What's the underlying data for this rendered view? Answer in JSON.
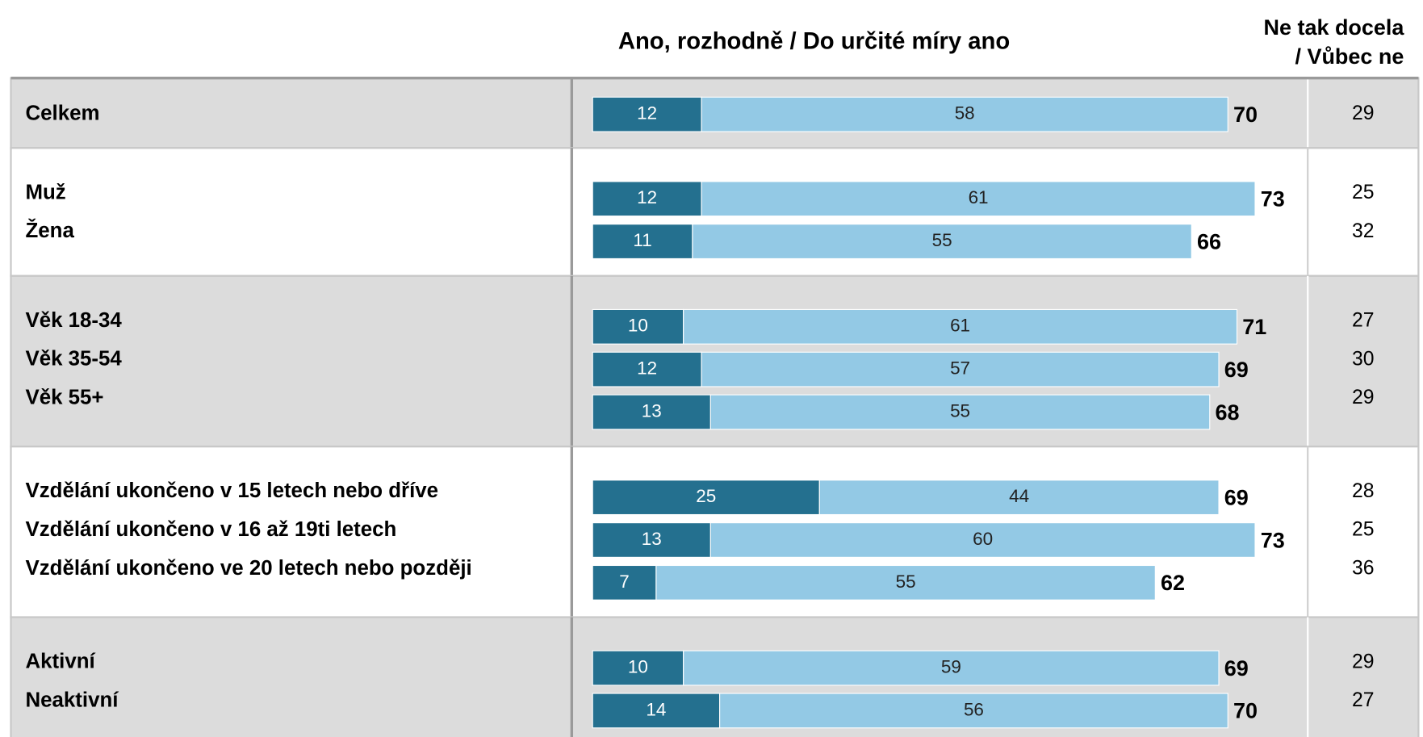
{
  "chart_data": {
    "type": "bar",
    "stacked": true,
    "orientation": "horizontal",
    "header_yes": "Ano, rozhodně / Do určité míry ano",
    "header_no": [
      "Ne tak docela",
      "/ Vůbec ne"
    ],
    "colors": [
      "#24708f",
      "#93c9e5"
    ],
    "xlim": [
      0,
      80
    ],
    "groups": [
      {
        "categories": [
          "Celkem"
        ],
        "series": [
          [
            12
          ],
          [
            58
          ]
        ],
        "totals": [
          70
        ],
        "rest": [
          29
        ]
      },
      {
        "categories": [
          "Muž",
          "Žena"
        ],
        "series": [
          [
            12,
            11
          ],
          [
            61,
            55
          ]
        ],
        "totals": [
          73,
          66
        ],
        "rest": [
          25,
          32
        ]
      },
      {
        "categories": [
          "Věk 18-34",
          "Věk 35-54",
          "Věk 55+"
        ],
        "series": [
          [
            10,
            12,
            13
          ],
          [
            61,
            57,
            55
          ]
        ],
        "totals": [
          71,
          69,
          68
        ],
        "rest": [
          27,
          30,
          29
        ]
      },
      {
        "categories": [
          "Vzdělání ukončeno v 15 letech nebo dříve",
          "Vzdělání ukončeno v 16 až 19ti letech",
          "Vzdělání ukončeno ve 20 letech nebo později"
        ],
        "series": [
          [
            25,
            13,
            7
          ],
          [
            44,
            60,
            55
          ]
        ],
        "totals": [
          69,
          73,
          62
        ],
        "rest": [
          28,
          25,
          36
        ]
      },
      {
        "categories": [
          "Aktivní",
          "Neaktivní"
        ],
        "series": [
          [
            10,
            14
          ],
          [
            59,
            56
          ]
        ],
        "totals": [
          69,
          70
        ],
        "rest": [
          29,
          27
        ]
      }
    ]
  }
}
